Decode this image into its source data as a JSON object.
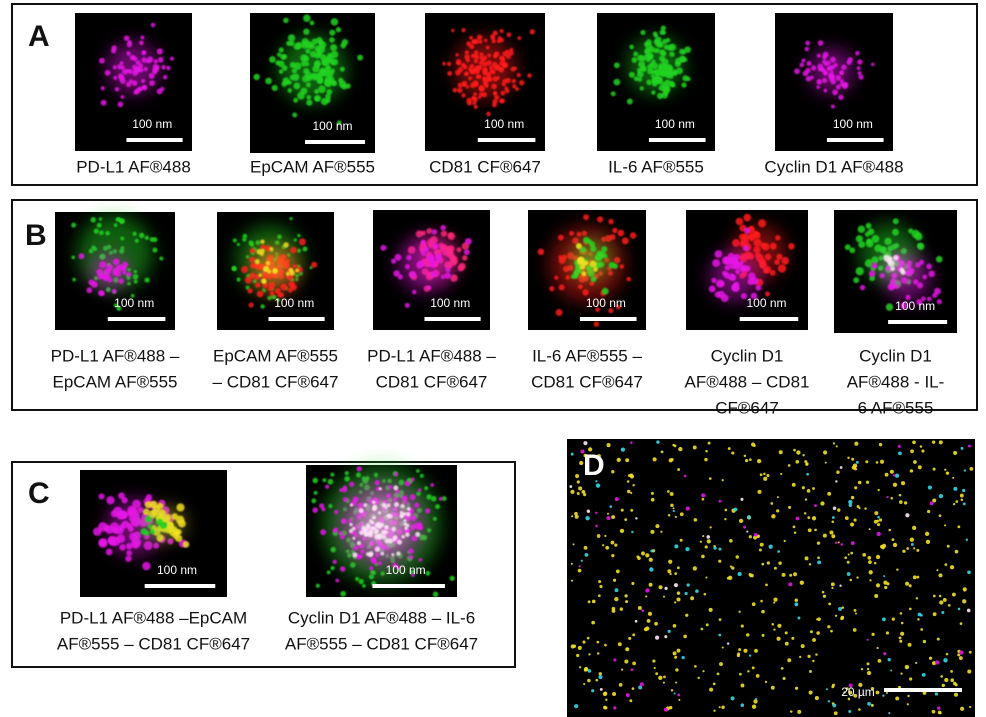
{
  "panels": [
    {
      "label": "A",
      "images": [
        {
          "scale_bar": "100 nm",
          "caption": [
            "PD-L1 AF®488"
          ]
        },
        {
          "scale_bar": "100 nm",
          "caption": [
            "EpCAM AF®555"
          ]
        },
        {
          "scale_bar": "100 nm",
          "caption": [
            "CD81 CF®647"
          ]
        },
        {
          "scale_bar": "100 nm",
          "caption": [
            "IL-6 AF®555"
          ]
        },
        {
          "scale_bar": "100 nm",
          "caption": [
            "Cyclin D1 AF®488"
          ]
        }
      ]
    },
    {
      "label": "B",
      "images": [
        {
          "scale_bar": "100 nm",
          "caption": [
            "PD-L1 AF®488 –",
            "EpCAM AF®555"
          ]
        },
        {
          "scale_bar": "100 nm",
          "caption": [
            "EpCAM AF®555",
            "– CD81 CF®647"
          ]
        },
        {
          "scale_bar": "100 nm",
          "caption": [
            "PD-L1 AF®488 –",
            "CD81 CF®647"
          ]
        },
        {
          "scale_bar": "100 nm",
          "caption": [
            "IL-6 AF®555 –",
            "CD81 CF®647"
          ]
        },
        {
          "scale_bar": "100 nm",
          "caption": [
            "Cyclin D1",
            "AF®488 – CD81",
            "CF®647"
          ]
        },
        {
          "scale_bar": "100 nm",
          "caption": [
            "Cyclin D1",
            "AF®488 - IL-",
            "6 AF®555"
          ]
        }
      ]
    },
    {
      "label": "C",
      "images": [
        {
          "scale_bar": "100 nm",
          "caption": [
            "PD-L1 AF®488 –EpCAM",
            "AF®555 – CD81 CF®647"
          ]
        },
        {
          "scale_bar": "100 nm",
          "caption": [
            "Cyclin D1 AF®488 – IL-6",
            "AF®555 – CD81 CF®647"
          ]
        }
      ]
    },
    {
      "label": "D",
      "images": [
        {
          "scale_bar": "20 µm"
        }
      ]
    }
  ]
}
